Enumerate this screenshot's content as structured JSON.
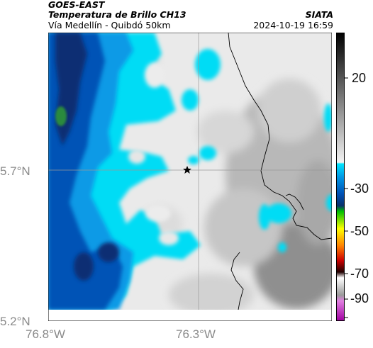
{
  "header": {
    "satellite": "GOES-EAST",
    "product": "Temperatura de Brillo CH13",
    "organization": "SIATA",
    "route": "Vía Medellín - Quibdó 50km",
    "datetime": "2024-10-19 16:59"
  },
  "map": {
    "y_ticks": [
      "5.7°N",
      "5.2°N"
    ],
    "x_ticks": [
      "76.8°W",
      "76.3°W"
    ],
    "grid": true,
    "marker": "star-icon"
  },
  "colorbar": {
    "ticks": [
      "20",
      "-30",
      "-50",
      "-70",
      "-90"
    ],
    "palette_colors": {
      "warm": "#000000",
      "gray_light": "#e6e6e6",
      "cyan": "#00e5ff",
      "sky": "#0099e6",
      "blue": "#0050b4",
      "navy": "#08306b",
      "green": "#00c000",
      "yellow": "#ffff00",
      "orange": "#ff8000",
      "red": "#cc0000",
      "dark": "#200000",
      "magenta": "#c000c0"
    }
  }
}
